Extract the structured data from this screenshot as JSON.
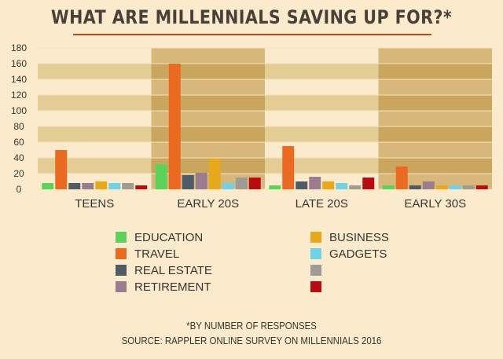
{
  "title": "WHAT ARE MILLENNIALS SAVING UP FOR?*",
  "footnote": "*BY NUMBER OF RESPONSES",
  "source": "SOURCE: RAPPLER ONLINE SURVEY ON MILLENNIALS 2016",
  "chart_data": {
    "type": "bar",
    "title": "WHAT ARE MILLENNIALS SAVING UP FOR?*",
    "xlabel": "",
    "ylabel": "",
    "ylim": [
      0,
      180
    ],
    "yticks": [
      0,
      20,
      40,
      60,
      80,
      100,
      120,
      140,
      160,
      180
    ],
    "grid": true,
    "legend_position": "bottom",
    "categories": [
      "TEENS",
      "EARLY 20S",
      "LATE 20S",
      "EARLY 30S"
    ],
    "series": [
      {
        "name": "EDUCATION",
        "color": "#5bd35a",
        "values": [
          8,
          32,
          5,
          5
        ]
      },
      {
        "name": "TRAVEL",
        "color": "#eb6a22",
        "values": [
          50,
          160,
          55,
          29
        ]
      },
      {
        "name": "REAL ESTATE",
        "color": "#4f5b66",
        "values": [
          8,
          18,
          10,
          5
        ]
      },
      {
        "name": "RETIREMENT",
        "color": "#9b7c8e",
        "values": [
          8,
          21,
          16,
          10
        ]
      },
      {
        "name": "BUSINESS",
        "color": "#e8a81c",
        "values": [
          10,
          39,
          10,
          5
        ]
      },
      {
        "name": "GADGETS",
        "color": "#6fd3e5",
        "values": [
          8,
          8,
          8,
          5
        ]
      },
      {
        "name": "",
        "color": "#a09a94",
        "values": [
          8,
          15,
          5,
          5
        ]
      },
      {
        "name": "",
        "color": "#b80d10",
        "values": [
          5,
          15,
          15,
          5
        ]
      }
    ]
  }
}
